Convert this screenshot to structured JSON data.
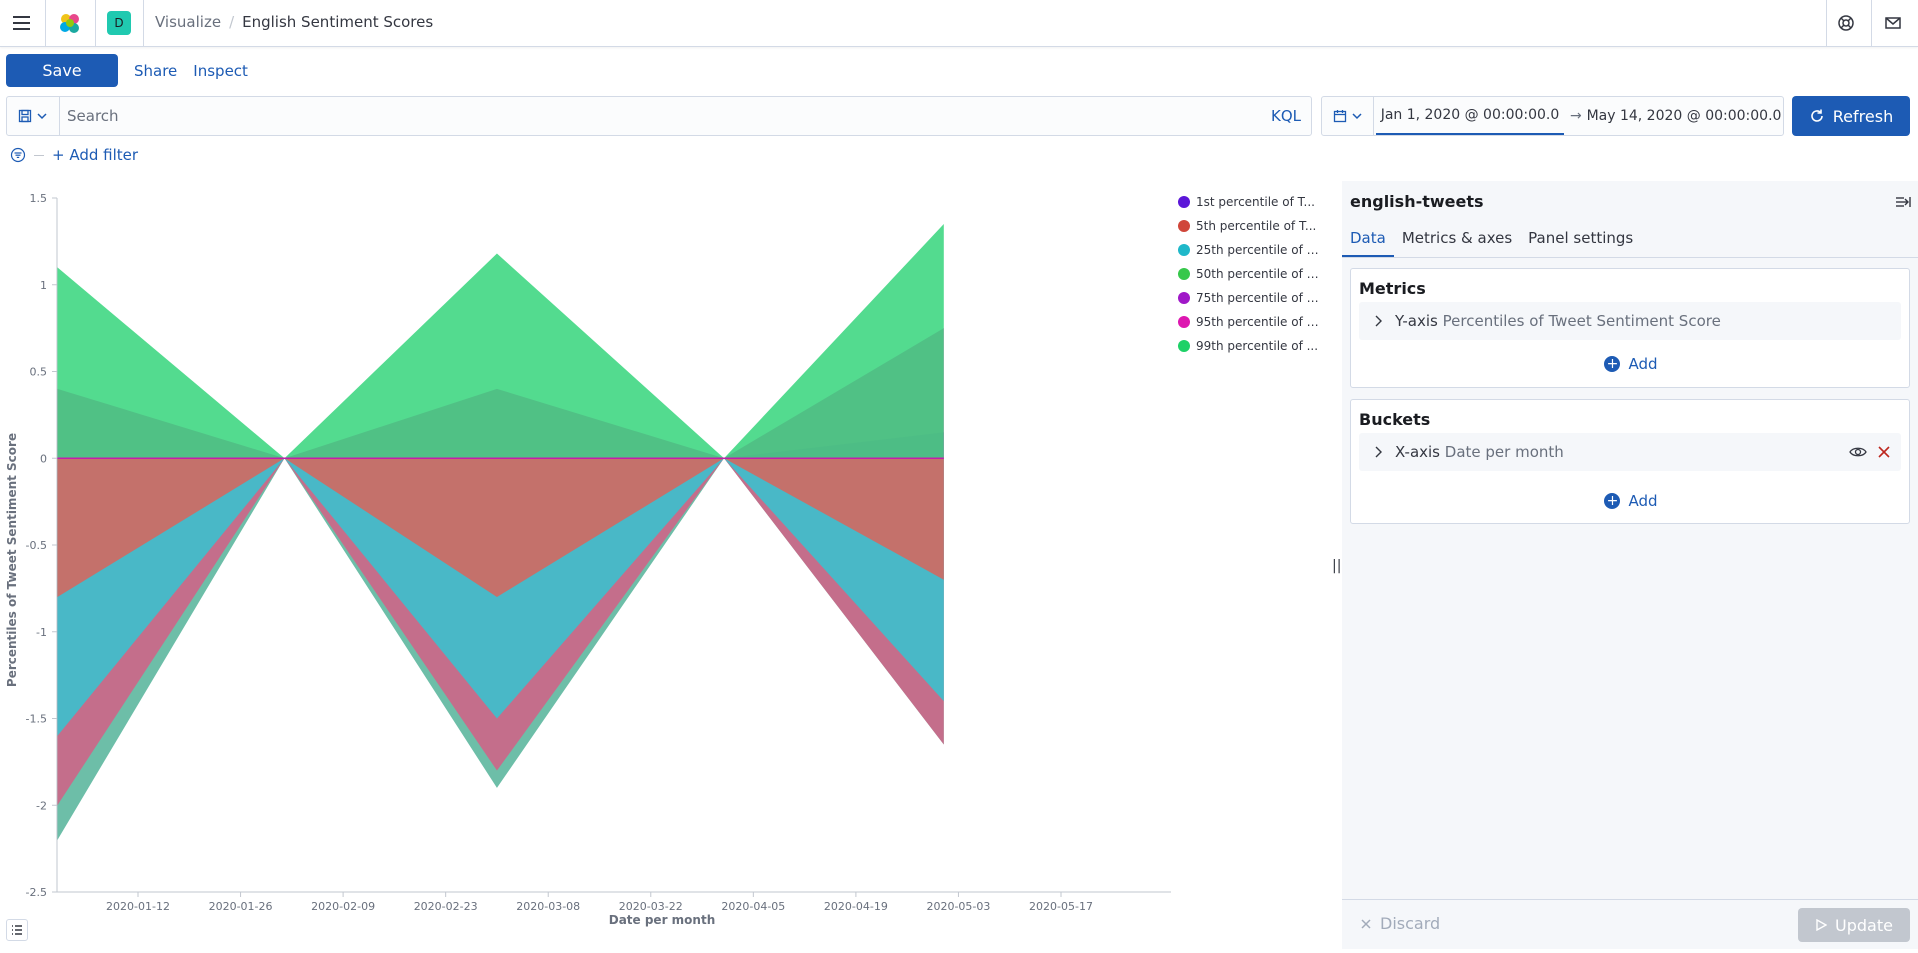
{
  "header": {
    "space_letter": "D",
    "breadcrumb_parent": "Visualize",
    "breadcrumb_current": "English Sentiment Scores"
  },
  "actions": {
    "save": "Save",
    "share": "Share",
    "inspect": "Inspect"
  },
  "query": {
    "placeholder": "Search",
    "language": "KQL"
  },
  "time": {
    "start": "Jan 1, 2020 @ 00:00:00.0",
    "end": "May 14, 2020 @ 00:00:00.0",
    "refresh": "Refresh"
  },
  "filters": {
    "add_filter": "+ Add filter"
  },
  "chart_data": {
    "type": "area",
    "xlabel": "Date per month",
    "ylabel": "Percentiles of Tweet Sentiment Score",
    "ylim": [
      -2.5,
      1.5
    ],
    "yticks": [
      "1.5",
      "1",
      "0.5",
      "0",
      "-0.5",
      "-1",
      "-1.5",
      "-2",
      "-2.5"
    ],
    "xticks": [
      "2020-01-12",
      "2020-01-26",
      "2020-02-09",
      "2020-02-23",
      "2020-03-08",
      "2020-03-22",
      "2020-04-05",
      "2020-04-19",
      "2020-05-03",
      "2020-05-17"
    ],
    "x": [
      "2020-01-01",
      "2020-02-01",
      "2020-03-01",
      "2020-04-01",
      "2020-05-01"
    ],
    "series": [
      {
        "name": "1st percentile of T...",
        "color": "#54b399",
        "values": [
          -2.2,
          0,
          -1.9,
          0,
          -1.65
        ]
      },
      {
        "name": "5th percentile of T...",
        "color": "#d36086",
        "values": [
          -2.0,
          0,
          -1.8,
          0,
          -1.65
        ]
      },
      {
        "name": "25th percentile of T...",
        "color": "#34c6d1",
        "values": [
          -1.6,
          0,
          -1.5,
          0,
          -1.4
        ]
      },
      {
        "name": "50th percentile of T...",
        "color": "#d9645a",
        "values": [
          -0.8,
          0,
          -0.8,
          0,
          -0.7
        ]
      },
      {
        "name": "75th percentile of T...",
        "color": "#8a4ad6",
        "values": [
          0,
          0,
          0,
          0,
          0.15
        ]
      },
      {
        "name": "95th percentile of T...",
        "color": "#e234b2",
        "values": [
          0.4,
          0,
          0.4,
          0,
          0.75
        ]
      },
      {
        "name": "99th percentile of ...",
        "color": "#35d57b",
        "values": [
          1.1,
          0,
          1.18,
          0,
          1.35
        ]
      }
    ],
    "legend": [
      {
        "label": "1st percentile of T...",
        "color": "#5b16d8"
      },
      {
        "label": "5th percentile of T...",
        "color": "#d0463a"
      },
      {
        "label": "25th percentile of T...",
        "color": "#1fb8c9"
      },
      {
        "label": "50th percentile of T...",
        "color": "#37c84b"
      },
      {
        "label": "75th percentile of T...",
        "color": "#a018c8"
      },
      {
        "label": "95th percentile of T...",
        "color": "#dd17b0"
      },
      {
        "label": "99th percentile of ...",
        "color": "#1ed167"
      }
    ]
  },
  "editor": {
    "index_pattern": "english-tweets",
    "tabs": [
      "Data",
      "Metrics & axes",
      "Panel settings"
    ],
    "metrics": {
      "title": "Metrics",
      "row_key": "Y-axis",
      "row_value": "Percentiles of Tweet Sentiment Score",
      "add": "Add"
    },
    "buckets": {
      "title": "Buckets",
      "row_key": "X-axis",
      "row_value": "Date per month",
      "add": "Add"
    },
    "discard": "Discard",
    "update": "Update"
  }
}
